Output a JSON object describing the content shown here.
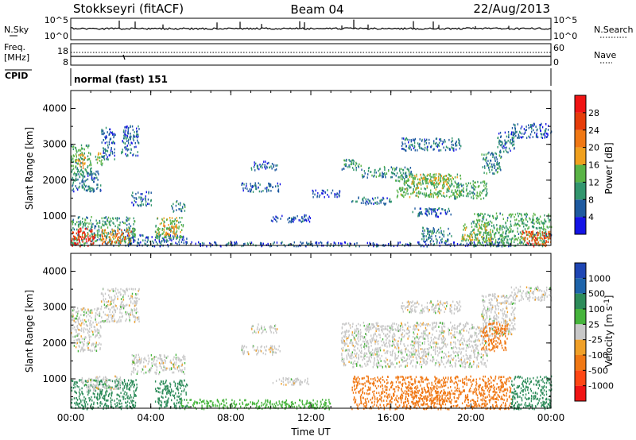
{
  "header": {
    "station": "Stokkseyri (fitACF)",
    "beam": "Beam 04",
    "date": "22/Aug/2013"
  },
  "noise_panel": {
    "left_label": "N.Sky",
    "left_ticks": [
      "10^5",
      "10^0"
    ],
    "right_label": "N.Search",
    "right_ticks": [
      "10^5",
      "10^0"
    ]
  },
  "freq_panel": {
    "left_label_1": "Freq.",
    "left_label_2": "[MHz]",
    "left_ticks": [
      "18",
      "8"
    ],
    "right_label": "Nave",
    "right_ticks": [
      "60",
      "0"
    ]
  },
  "cpid": {
    "label": "CPID",
    "value": "normal (fast) 151"
  },
  "colors": {
    "power": [
      "#1414e6",
      "#1e5aa0",
      "#32966e",
      "#5ab446",
      "#f0a01e",
      "#f07814",
      "#e63c0a",
      "#f01414"
    ],
    "velocity": [
      "#1e46b4",
      "#1e64aa",
      "#2d8c5a",
      "#46b43c",
      "#c8c8c8",
      "#f0a028",
      "#f07814",
      "#ff4614",
      "#f01414"
    ]
  },
  "chart_data": [
    {
      "type": "heatmap",
      "name": "power",
      "xlabel": "",
      "ylabel": "Slant Range [km]",
      "x_ticks": [
        "00:00",
        "04:00",
        "08:00",
        "12:00",
        "16:00",
        "20:00",
        "00:00"
      ],
      "y_ticks": [
        "1000",
        "2000",
        "3000",
        "4000"
      ],
      "xlim": [
        0,
        24
      ],
      "ylim": [
        180,
        4500
      ],
      "colorbar_label": "Power [dB]",
      "colorbar_ticks": [
        "4",
        "8",
        "12",
        "16",
        "20",
        "24",
        "28"
      ],
      "color_range": [
        0,
        30
      ],
      "regions": [
        {
          "t0": 0.0,
          "t1": 1.0,
          "r0": 2200,
          "r1": 3000,
          "v": 11
        },
        {
          "t0": 0.2,
          "t1": 0.7,
          "r0": 2350,
          "r1": 2750,
          "v": 17
        },
        {
          "t0": 0.0,
          "t1": 1.5,
          "r0": 1700,
          "r1": 2300,
          "v": 7
        },
        {
          "t0": 1.2,
          "t1": 1.6,
          "r0": 2400,
          "r1": 2800,
          "v": 14
        },
        {
          "t0": 1.5,
          "t1": 2.2,
          "r0": 2600,
          "r1": 3500,
          "v": 6
        },
        {
          "t0": 2.5,
          "t1": 3.4,
          "r0": 2700,
          "r1": 3550,
          "v": 6
        },
        {
          "t0": 0.0,
          "t1": 3.2,
          "r0": 180,
          "r1": 1000,
          "v": 10
        },
        {
          "t0": 0.0,
          "t1": 1.2,
          "r0": 180,
          "r1": 700,
          "v": 26
        },
        {
          "t0": 1.5,
          "t1": 3.0,
          "r0": 250,
          "r1": 650,
          "v": 21
        },
        {
          "t0": 2.8,
          "t1": 5.8,
          "r0": 180,
          "r1": 500,
          "v": 6
        },
        {
          "t0": 4.2,
          "t1": 5.6,
          "r0": 400,
          "r1": 1000,
          "v": 13
        },
        {
          "t0": 4.5,
          "t1": 5.3,
          "r0": 500,
          "r1": 750,
          "v": 19
        },
        {
          "t0": 3.0,
          "t1": 4.0,
          "r0": 1300,
          "r1": 1700,
          "v": 6
        },
        {
          "t0": 5.0,
          "t1": 5.7,
          "r0": 1150,
          "r1": 1450,
          "v": 8
        },
        {
          "t0": 6.0,
          "t1": 22.0,
          "r0": 180,
          "r1": 300,
          "v": 5
        },
        {
          "t0": 8.5,
          "t1": 10.5,
          "r0": 1700,
          "r1": 1950,
          "v": 6
        },
        {
          "t0": 9.0,
          "t1": 10.3,
          "r0": 2300,
          "r1": 2550,
          "v": 6
        },
        {
          "t0": 10.0,
          "t1": 12.0,
          "r0": 850,
          "r1": 1050,
          "v": 5
        },
        {
          "t0": 12.0,
          "t1": 13.5,
          "r0": 1550,
          "r1": 1750,
          "v": 5
        },
        {
          "t0": 13.5,
          "t1": 14.5,
          "r0": 2300,
          "r1": 2600,
          "v": 10
        },
        {
          "t0": 14.0,
          "t1": 16.0,
          "r0": 1350,
          "r1": 1550,
          "v": 7
        },
        {
          "t0": 14.5,
          "t1": 17.0,
          "r0": 2100,
          "r1": 2400,
          "v": 9
        },
        {
          "t0": 16.2,
          "t1": 19.5,
          "r0": 1550,
          "r1": 2200,
          "v": 12
        },
        {
          "t0": 17.0,
          "t1": 19.0,
          "r0": 1900,
          "r1": 2200,
          "v": 15
        },
        {
          "t0": 19.0,
          "t1": 20.8,
          "r0": 1500,
          "r1": 2000,
          "v": 11
        },
        {
          "t0": 17.0,
          "t1": 19.0,
          "r0": 1000,
          "r1": 1250,
          "v": 6
        },
        {
          "t0": 16.5,
          "t1": 19.5,
          "r0": 2850,
          "r1": 3200,
          "v": 7
        },
        {
          "t0": 20.5,
          "t1": 21.5,
          "r0": 2200,
          "r1": 2800,
          "v": 9
        },
        {
          "t0": 21.3,
          "t1": 22.2,
          "r0": 2800,
          "r1": 3400,
          "v": 7
        },
        {
          "t0": 22.0,
          "t1": 24.0,
          "r0": 3200,
          "r1": 3600,
          "v": 5
        },
        {
          "t0": 20.0,
          "t1": 24.0,
          "r0": 180,
          "r1": 1100,
          "v": 11
        },
        {
          "t0": 22.5,
          "t1": 24.0,
          "r0": 180,
          "r1": 600,
          "v": 24
        },
        {
          "t0": 19.5,
          "t1": 21.0,
          "r0": 300,
          "r1": 800,
          "v": 14
        },
        {
          "t0": 17.5,
          "t1": 19.0,
          "r0": 300,
          "r1": 700,
          "v": 8
        }
      ]
    },
    {
      "type": "heatmap",
      "name": "velocity",
      "xlabel": "Time UT",
      "ylabel": "Slant Range [km]",
      "x_ticks": [
        "00:00",
        "04:00",
        "08:00",
        "12:00",
        "16:00",
        "20:00",
        "00:00"
      ],
      "y_ticks": [
        "1000",
        "2000",
        "3000",
        "4000"
      ],
      "xlim": [
        0,
        24
      ],
      "ylim": [
        180,
        4500
      ],
      "colorbar_label": "Velocity [m s^-1]",
      "colorbar_ticks": [
        "1000",
        "500",
        "100",
        "25",
        "-25",
        "-100",
        "-500",
        "-1000"
      ],
      "regions": [
        {
          "t0": 0.0,
          "t1": 1.5,
          "r0": 1800,
          "r1": 3000,
          "v": 0
        },
        {
          "t0": 1.5,
          "t1": 3.4,
          "r0": 2600,
          "r1": 3550,
          "v": 0
        },
        {
          "t0": 0.0,
          "t1": 3.3,
          "r0": 180,
          "r1": 1000,
          "v": 300
        },
        {
          "t0": 0.5,
          "t1": 2.5,
          "r0": 700,
          "r1": 1100,
          "v": 0
        },
        {
          "t0": 4.2,
          "t1": 5.8,
          "r0": 200,
          "r1": 1000,
          "v": 300
        },
        {
          "t0": 3.0,
          "t1": 5.7,
          "r0": 1150,
          "r1": 1700,
          "v": 0
        },
        {
          "t0": 5.5,
          "t1": 13.0,
          "r0": 180,
          "r1": 450,
          "v": 60
        },
        {
          "t0": 8.5,
          "t1": 10.5,
          "r0": 1700,
          "r1": 1950,
          "v": 0
        },
        {
          "t0": 9.0,
          "t1": 10.3,
          "r0": 2300,
          "r1": 2550,
          "v": 0
        },
        {
          "t0": 10.0,
          "t1": 12.0,
          "r0": 850,
          "r1": 1050,
          "v": 0
        },
        {
          "t0": 13.5,
          "t1": 20.8,
          "r0": 1350,
          "r1": 2600,
          "v": 0
        },
        {
          "t0": 16.5,
          "t1": 19.5,
          "r0": 2850,
          "r1": 3200,
          "v": 0
        },
        {
          "t0": 20.5,
          "t1": 22.2,
          "r0": 2200,
          "r1": 3400,
          "v": 0
        },
        {
          "t0": 22.0,
          "t1": 24.0,
          "r0": 3200,
          "r1": 3600,
          "v": 0
        },
        {
          "t0": 14.0,
          "t1": 22.0,
          "r0": 180,
          "r1": 1100,
          "v": -150
        },
        {
          "t0": 17.0,
          "t1": 19.0,
          "r0": 300,
          "r1": 700,
          "v": -400
        },
        {
          "t0": 20.5,
          "t1": 21.8,
          "r0": 1800,
          "r1": 2600,
          "v": -150
        },
        {
          "t0": 22.0,
          "t1": 24.0,
          "r0": 180,
          "r1": 1100,
          "v": 250
        }
      ]
    }
  ]
}
